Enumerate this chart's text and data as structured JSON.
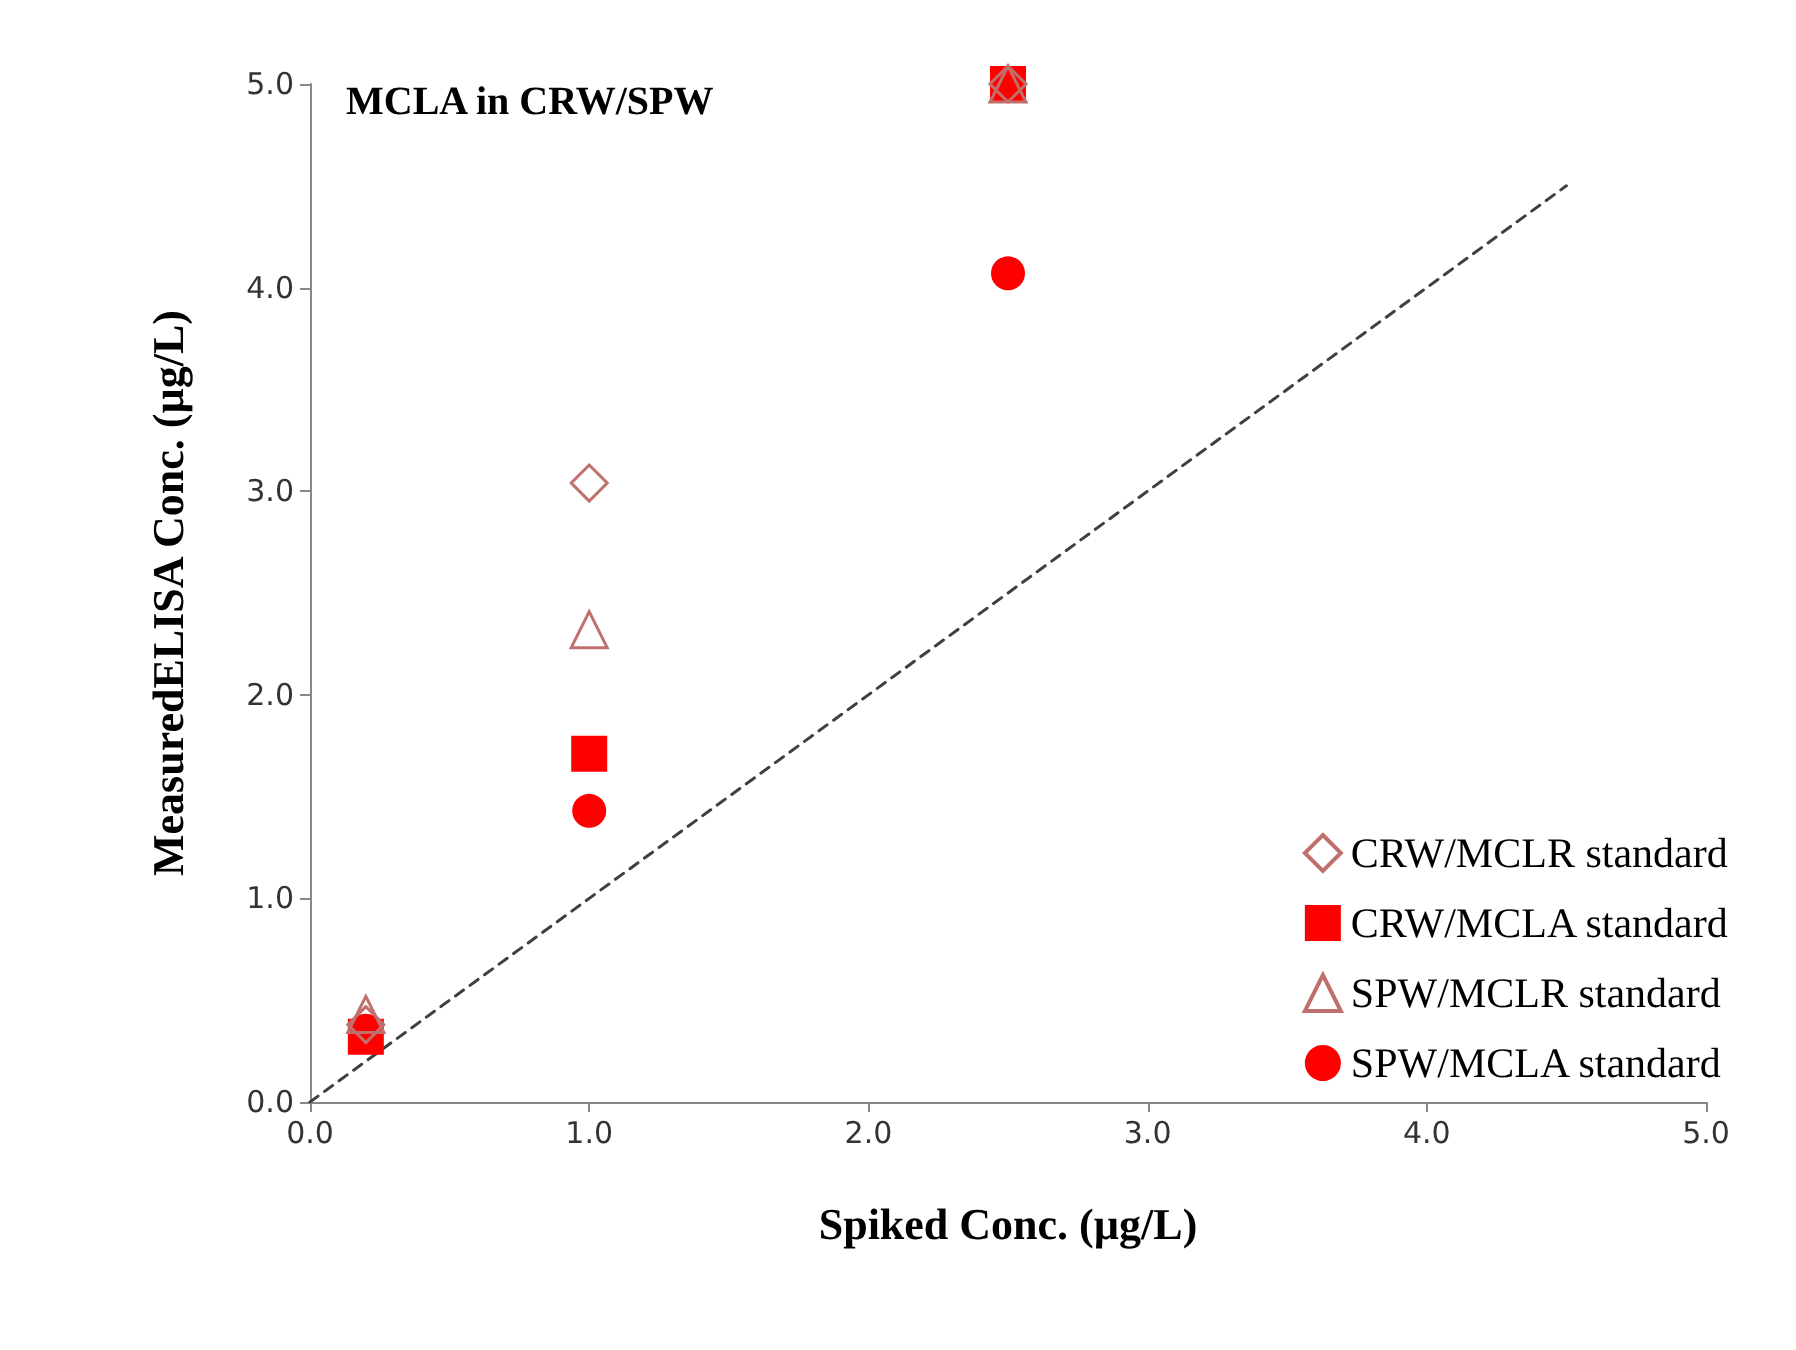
{
  "chart_data": {
    "type": "scatter",
    "title": "MCLA in CRW/SPW",
    "xlabel": "Spiked Conc. (µg/L)",
    "ylabel": "MeasuredELISA Conc. (µg/L)",
    "x": [
      0.2,
      1.0,
      2.5
    ],
    "series": [
      {
        "name": "CRW/MCLR standard",
        "color": "#c0706c",
        "marker": "diamond",
        "values": [
          0.38,
          3.04,
          5.0
        ]
      },
      {
        "name": "CRW/MCLA standard",
        "color": "#ff0000",
        "marker": "square",
        "values": [
          0.32,
          1.71,
          5.0
        ]
      },
      {
        "name": "SPW/MCLR standard",
        "color": "#c0706c",
        "marker": "triangle",
        "values": [
          0.43,
          2.32,
          5.0
        ]
      },
      {
        "name": "SPW/MCLA standard",
        "color": "#ff0000",
        "marker": "circle",
        "values": [
          0.35,
          1.43,
          4.07
        ]
      },
      {
        "type": "line",
        "x": [
          0,
          4.5
        ],
        "values": [
          0,
          4.5
        ],
        "color": "#404040",
        "line_style": "dashed",
        "marker": "none"
      }
    ],
    "xlim": [
      0,
      5
    ],
    "ylim": [
      0,
      5
    ],
    "xticks": [
      {
        "value": 0,
        "label": "0.0"
      },
      {
        "value": 1,
        "label": "1.0"
      },
      {
        "value": 2,
        "label": "2.0"
      },
      {
        "value": 3,
        "label": "3.0"
      },
      {
        "value": 4,
        "label": "4.0"
      },
      {
        "value": 5,
        "label": "5.0"
      }
    ],
    "yticks": [
      {
        "value": 0,
        "label": "0.0"
      },
      {
        "value": 1,
        "label": "1.0"
      },
      {
        "value": 2,
        "label": "2.0"
      },
      {
        "value": 3,
        "label": "3.0"
      },
      {
        "value": 4,
        "label": "4.0"
      },
      {
        "value": 5,
        "label": "5.0"
      }
    ],
    "grid": false,
    "legend": "bottom right"
  }
}
